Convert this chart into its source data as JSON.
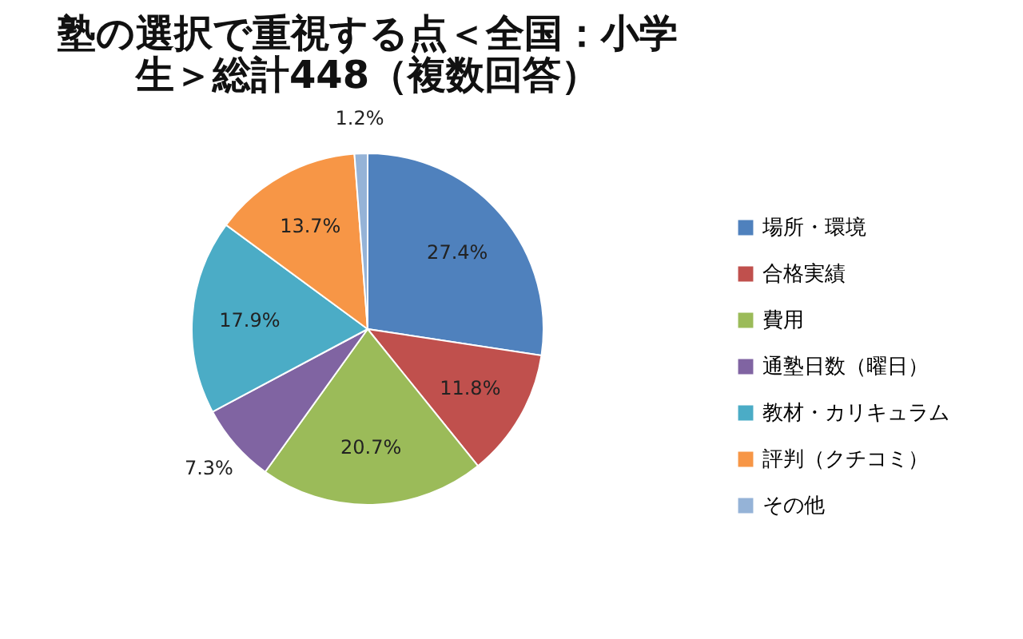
{
  "chart_data": {
    "type": "pie",
    "title": "塾の選択で重視する点＜全国：小学生＞総計448（複数回答）",
    "categories": [
      "場所・環境",
      "合格実績",
      "費用",
      "通塾日数（曜日）",
      "教材・カリキュラム",
      "評判（クチコミ）",
      "その他"
    ],
    "values": [
      27.4,
      11.8,
      20.7,
      7.3,
      17.9,
      13.7,
      1.2
    ],
    "colors": [
      "#4f81bd",
      "#c0504d",
      "#9bbb59",
      "#8064a2",
      "#4bacc6",
      "#f79646",
      "#95b3d7"
    ],
    "value_labels": [
      "27.4%",
      "11.8%",
      "20.7%",
      "7.3%",
      "17.9%",
      "13.7%",
      "1.2%"
    ],
    "legend": "right"
  }
}
